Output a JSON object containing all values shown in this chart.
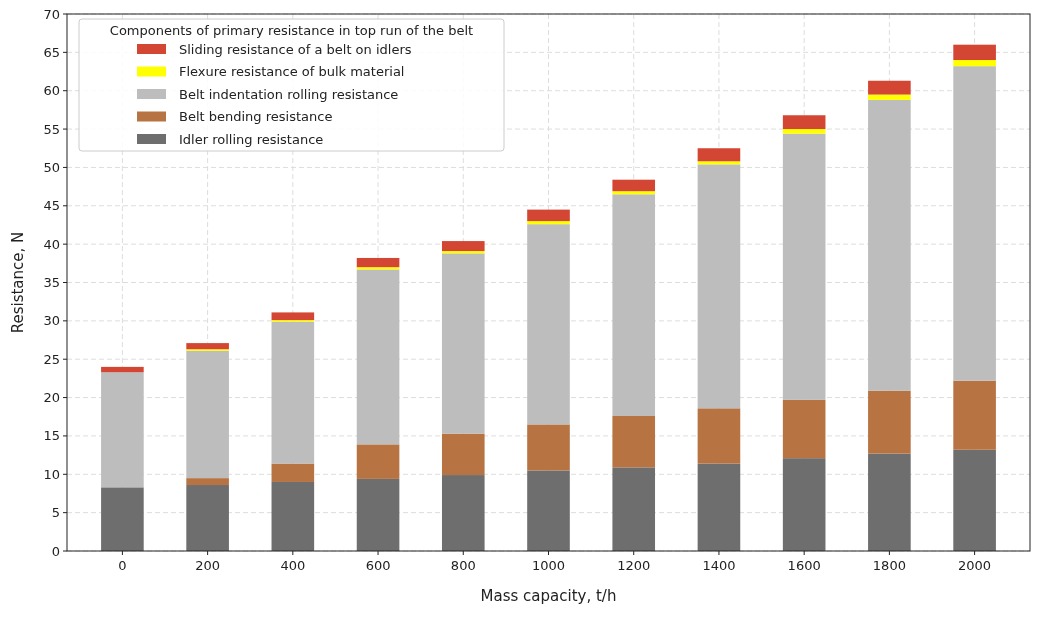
{
  "chart_data": {
    "type": "bar",
    "stacked": true,
    "xlabel": "Mass capacity, t/h",
    "ylabel": "Resistance, N",
    "legend_title": "Components of primary resistance in top run of the belt",
    "legend": "top left",
    "grid": true,
    "categories": [
      "0",
      "200",
      "400",
      "600",
      "800",
      "1000",
      "1200",
      "1400",
      "1600",
      "1800",
      "2000"
    ],
    "ylim": [
      0,
      70
    ],
    "yticks": [
      0,
      5,
      10,
      15,
      20,
      25,
      30,
      35,
      40,
      45,
      50,
      55,
      60,
      65,
      70
    ],
    "series": [
      {
        "name": "Idler rolling resistance",
        "color": "#6e6e6e",
        "values": [
          8.3,
          8.6,
          9.0,
          9.4,
          9.9,
          10.5,
          10.9,
          11.4,
          12.1,
          12.7,
          13.2
        ]
      },
      {
        "name": "Belt bending resistance",
        "color": "#b87343",
        "values": [
          0,
          0.9,
          2.4,
          4.5,
          5.4,
          6.0,
          6.7,
          7.2,
          7.6,
          8.2,
          9.0
        ]
      },
      {
        "name": "Belt indentation rolling resistance",
        "color": "#bdbdbd",
        "values": [
          15.0,
          16.6,
          18.5,
          22.8,
          23.5,
          26.1,
          28.9,
          31.8,
          34.7,
          37.9,
          41.0
        ]
      },
      {
        "name": "Flexure resistance of bulk material",
        "color": "#ffff00",
        "values": [
          0,
          0.2,
          0.2,
          0.3,
          0.3,
          0.4,
          0.4,
          0.4,
          0.6,
          0.7,
          0.8
        ]
      },
      {
        "name": "Sliding resistance of a belt on idlers",
        "color": "#d24633",
        "values": [
          0.7,
          0.8,
          1.0,
          1.2,
          1.3,
          1.5,
          1.5,
          1.7,
          1.8,
          1.8,
          2.0
        ]
      }
    ]
  }
}
